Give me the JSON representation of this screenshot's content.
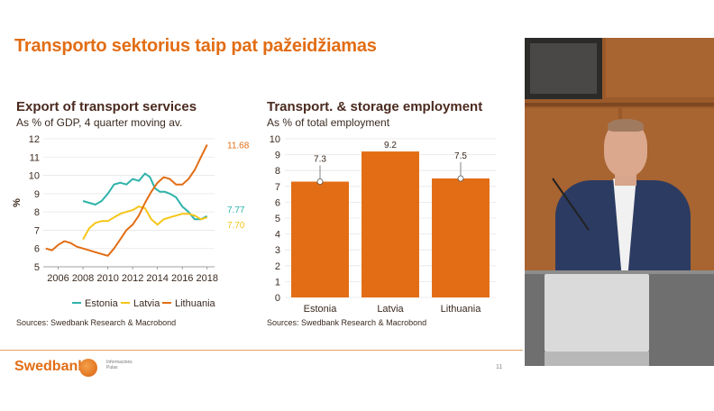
{
  "slide": {
    "title": "Transporto sektorius taip pat pažeidžiamas",
    "logo": "Swedbank",
    "logo_small_line1": "Informacinės",
    "logo_small_line2": "Pulas",
    "page_number": "11"
  },
  "chart_data": [
    {
      "type": "line",
      "title": "Export of transport services",
      "subtitle": "As % of GDP, 4 quarter moving av.",
      "ylabel": "%",
      "ylim": [
        5,
        12
      ],
      "yticks": [
        "5",
        "6",
        "7",
        "8",
        "9",
        "10",
        "11",
        "12"
      ],
      "xlim": [
        2004.8,
        2018.6
      ],
      "xticks": [
        "2006",
        "2008",
        "2010",
        "2012",
        "2014",
        "2016",
        "2018"
      ],
      "source": "Sources: Swedbank Research & Macrobond",
      "series": [
        {
          "name": "Estonia",
          "color": "#2eb3aa",
          "end_label": "7.77",
          "x": [
            2008.0,
            2008.5,
            2009.0,
            2009.5,
            2010.0,
            2010.5,
            2011.0,
            2011.5,
            2012.0,
            2012.5,
            2013.0,
            2013.4,
            2013.8,
            2014.2,
            2014.6,
            2015.0,
            2015.5,
            2016.0,
            2016.5,
            2017.0,
            2017.5,
            2018.0
          ],
          "values": [
            8.6,
            8.5,
            8.4,
            8.6,
            9.0,
            9.5,
            9.6,
            9.5,
            9.8,
            9.7,
            10.1,
            9.9,
            9.3,
            9.1,
            9.1,
            9.0,
            8.8,
            8.3,
            8.0,
            7.6,
            7.6,
            7.77
          ]
        },
        {
          "name": "Latvia",
          "color": "#f5c518",
          "end_label": "7.70",
          "x": [
            2008.0,
            2008.5,
            2009.0,
            2009.5,
            2010.0,
            2010.5,
            2011.0,
            2011.5,
            2012.0,
            2012.5,
            2013.0,
            2013.5,
            2014.0,
            2014.5,
            2015.0,
            2015.5,
            2016.0,
            2016.5,
            2017.0,
            2017.5,
            2018.0
          ],
          "values": [
            6.5,
            7.1,
            7.4,
            7.5,
            7.5,
            7.7,
            7.9,
            8.0,
            8.1,
            8.3,
            8.2,
            7.6,
            7.3,
            7.6,
            7.7,
            7.8,
            7.9,
            7.9,
            7.8,
            7.6,
            7.7
          ]
        },
        {
          "name": "Lithuania",
          "color": "#e26d14",
          "end_label": "11.68",
          "x": [
            2005.0,
            2005.5,
            2006.0,
            2006.5,
            2007.0,
            2007.5,
            2008.0,
            2008.5,
            2009.0,
            2009.5,
            2010.0,
            2010.5,
            2011.0,
            2011.5,
            2012.0,
            2012.5,
            2013.0,
            2013.5,
            2014.0,
            2014.5,
            2015.0,
            2015.5,
            2016.0,
            2016.5,
            2017.0,
            2017.5,
            2018.0
          ],
          "values": [
            6.0,
            5.9,
            6.2,
            6.4,
            6.3,
            6.1,
            6.0,
            5.9,
            5.8,
            5.7,
            5.6,
            6.0,
            6.5,
            7.0,
            7.3,
            7.8,
            8.5,
            9.1,
            9.6,
            9.9,
            9.8,
            9.5,
            9.5,
            9.8,
            10.3,
            11.0,
            11.68
          ]
        }
      ]
    },
    {
      "type": "bar",
      "title": "Transport. & storage employment",
      "subtitle": "As % of total employment",
      "ylim": [
        0,
        10
      ],
      "yticks": [
        "0",
        "1",
        "2",
        "3",
        "4",
        "5",
        "6",
        "7",
        "8",
        "9",
        "10"
      ],
      "categories": [
        "Estonia",
        "Latvia",
        "Lithuania"
      ],
      "values": [
        7.3,
        9.2,
        7.5
      ],
      "labels": [
        "7.3",
        "9.2",
        "7.5"
      ],
      "error_markers": [
        true,
        false,
        true
      ],
      "bar_color": "#e26d14",
      "source": "Sources: Swedbank Research & Macrobond"
    }
  ]
}
